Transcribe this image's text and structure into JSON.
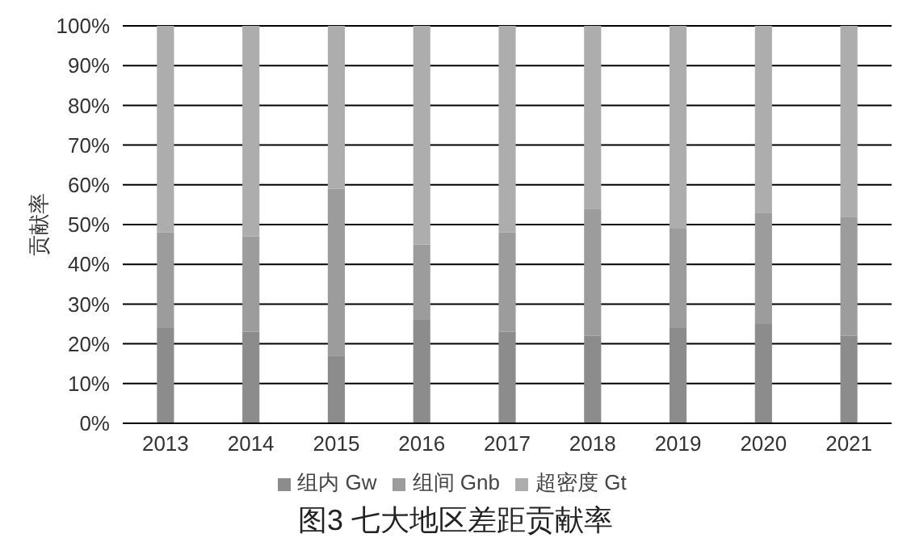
{
  "chart_data": {
    "type": "bar",
    "title": "图3 七大地区差距贡献率",
    "ylabel": "贡献率",
    "stacked": true,
    "categories": [
      "2013",
      "2014",
      "2015",
      "2016",
      "2017",
      "2018",
      "2019",
      "2020",
      "2021"
    ],
    "series": [
      {
        "name": "组内 Gw",
        "color": "#8c8c8c",
        "values": [
          24,
          23,
          17,
          26,
          23,
          22,
          24,
          25,
          22
        ]
      },
      {
        "name": "组间 Gnb",
        "color": "#9c9c9c",
        "values": [
          24,
          24,
          42,
          19,
          25,
          32,
          25,
          28,
          30
        ]
      },
      {
        "name": "超密度 Gt",
        "color": "#adadad",
        "values": [
          52,
          53,
          41,
          55,
          52,
          46,
          51,
          47,
          48
        ]
      }
    ],
    "ylim": [
      0,
      100
    ],
    "yticks": [
      {
        "value": 0,
        "label": "0%"
      },
      {
        "value": 10,
        "label": "10%"
      },
      {
        "value": 20,
        "label": "20%"
      },
      {
        "value": 30,
        "label": "30%"
      },
      {
        "value": 40,
        "label": "40%"
      },
      {
        "value": 50,
        "label": "50%"
      },
      {
        "value": 60,
        "label": "60%"
      },
      {
        "value": 70,
        "label": "70%"
      },
      {
        "value": 80,
        "label": "80%"
      },
      {
        "value": 90,
        "label": "90%"
      },
      {
        "value": 100,
        "label": "100%"
      }
    ],
    "grid": "y",
    "legend": "bottom"
  }
}
